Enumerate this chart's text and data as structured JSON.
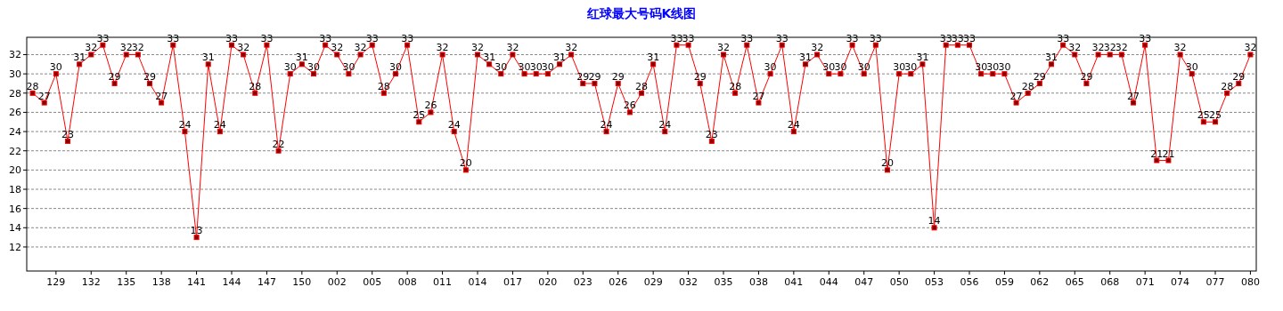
{
  "chart_data": {
    "type": "line",
    "title": "红球最大号码K线图",
    "categories": [
      null,
      null,
      "129",
      null,
      null,
      "132",
      null,
      null,
      "135",
      null,
      null,
      "138",
      null,
      null,
      "141",
      null,
      null,
      "144",
      null,
      null,
      "147",
      null,
      null,
      "150",
      null,
      null,
      "002",
      null,
      null,
      "005",
      null,
      null,
      "008",
      null,
      null,
      "011",
      null,
      null,
      "014",
      null,
      null,
      "017",
      null,
      null,
      "020",
      null,
      null,
      "023",
      null,
      null,
      "026",
      null,
      null,
      "029",
      null,
      null,
      "032",
      null,
      null,
      "035",
      null,
      null,
      "038",
      null,
      null,
      "041",
      null,
      null,
      "044",
      null,
      null,
      "047",
      null,
      null,
      "050",
      null,
      null,
      "053",
      null,
      null,
      "056",
      null,
      null,
      "059",
      null,
      null,
      "062",
      null,
      null,
      "065",
      null,
      null,
      "068",
      null,
      null,
      "071",
      null,
      null,
      "074",
      null,
      null,
      "077",
      null,
      null,
      "080"
    ],
    "series": [
      {
        "color": "#ff0000",
        "values": [
          28,
          27,
          30,
          23,
          31,
          32,
          33,
          29,
          32,
          32,
          29,
          27,
          33,
          24,
          13,
          31,
          24,
          33,
          32,
          28,
          33,
          22,
          30,
          31,
          30,
          33,
          32,
          30,
          32,
          33,
          28,
          30,
          33,
          25,
          26,
          32,
          24,
          20,
          32,
          31,
          30,
          32,
          30,
          30,
          30,
          31,
          32,
          29,
          29,
          24,
          29,
          26,
          28,
          31,
          24,
          33,
          33,
          29,
          23,
          32,
          28,
          33,
          27,
          30,
          33,
          24,
          31,
          32,
          30,
          30,
          33,
          30,
          33,
          20,
          30,
          30,
          31,
          14,
          33,
          33,
          33,
          30,
          30,
          30,
          27,
          28,
          29,
          31,
          33,
          32,
          29,
          32,
          32,
          32,
          27,
          33,
          21,
          21,
          32,
          30,
          25,
          25,
          28,
          29,
          32
        ]
      }
    ],
    "ylim": [
      9.5,
      33.8
    ],
    "yticks": [
      12,
      14,
      16,
      18,
      20,
      22,
      24,
      26,
      28,
      30,
      32
    ],
    "grid": "y",
    "marker": "square",
    "data_labels": true
  }
}
